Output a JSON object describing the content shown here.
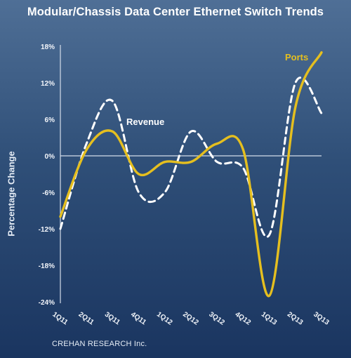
{
  "title": "Modular/Chassis Data Center Ethernet Switch Trends",
  "source": "CREHAN RESEARCH Inc.",
  "colors": {
    "background_top": "#4f6f96",
    "background_bottom": "#1a3560",
    "ports": "#e5bf1f",
    "revenue": "#ffffff",
    "text": "#ffffff"
  },
  "chart_data": {
    "type": "line",
    "title": "Modular/Chassis Data Center Ethernet Switch Trends",
    "xlabel": "",
    "ylabel": "Percentage Change",
    "categories": [
      "1Q11",
      "2Q11",
      "3Q11",
      "4Q11",
      "1Q12",
      "2Q12",
      "3Q12",
      "4Q12",
      "1Q13",
      "2Q13",
      "3Q13"
    ],
    "y_ticks": [
      "18%",
      "12%",
      "6%",
      "0%",
      "-6%",
      "-12%",
      "-18%",
      "-24%"
    ],
    "y_tick_values": [
      18,
      12,
      6,
      0,
      -6,
      -12,
      -18,
      -24
    ],
    "ylim": [
      -24,
      18
    ],
    "grid": false,
    "series": [
      {
        "name": "Ports",
        "style": "solid",
        "values": [
          -10,
          1,
          4,
          -3,
          -1,
          -1,
          2,
          1,
          -23,
          8,
          17
        ]
      },
      {
        "name": "Revenue",
        "style": "dashed",
        "values": [
          -12,
          2,
          9,
          -6,
          -6,
          4,
          -1,
          -2,
          -13,
          12,
          7
        ]
      }
    ]
  }
}
